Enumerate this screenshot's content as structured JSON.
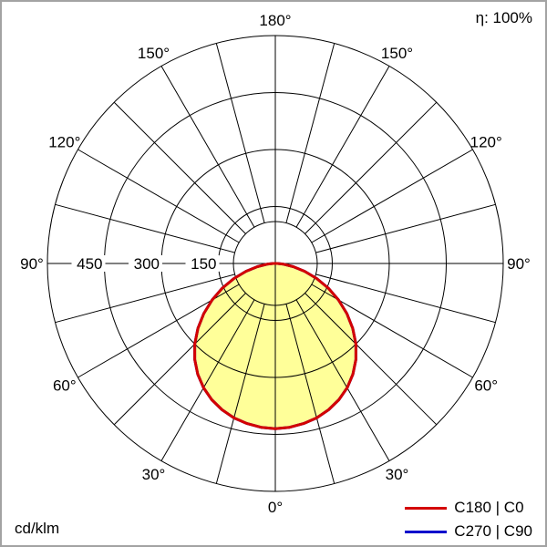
{
  "chart_data": {
    "type": "polar-photometric",
    "efficiency": "η: 100%",
    "unit": "cd/klm",
    "angle_labels_deg": [
      0,
      30,
      60,
      90,
      120,
      150,
      180
    ],
    "grid_angle_step_deg": 15,
    "radial_ticks": [
      150,
      300,
      450
    ],
    "radial_max": 600,
    "legend_position": "bottom-right",
    "series": [
      {
        "name": "C180 | C0",
        "color": "#d40000",
        "fill": "#ffff99",
        "symmetric": true,
        "angles_deg": [
          0,
          5,
          10,
          15,
          20,
          25,
          30,
          35,
          40,
          45,
          50,
          55,
          60,
          65,
          70,
          75,
          80,
          85,
          90
        ],
        "values": [
          435,
          433,
          428,
          421,
          410,
          396,
          378,
          356,
          330,
          300,
          266,
          230,
          192,
          154,
          116,
          80,
          48,
          22,
          6
        ]
      },
      {
        "name": "C270 | C90",
        "color": "#0000cc",
        "fill": "none",
        "symmetric": true,
        "angles_deg": [
          0,
          5,
          10,
          15,
          20,
          25,
          30,
          35,
          40,
          45,
          50,
          55,
          60,
          65,
          70,
          75,
          80,
          85,
          90
        ],
        "values": [
          435,
          433,
          428,
          421,
          410,
          396,
          378,
          356,
          330,
          300,
          266,
          230,
          192,
          154,
          116,
          80,
          48,
          22,
          6
        ]
      }
    ]
  }
}
